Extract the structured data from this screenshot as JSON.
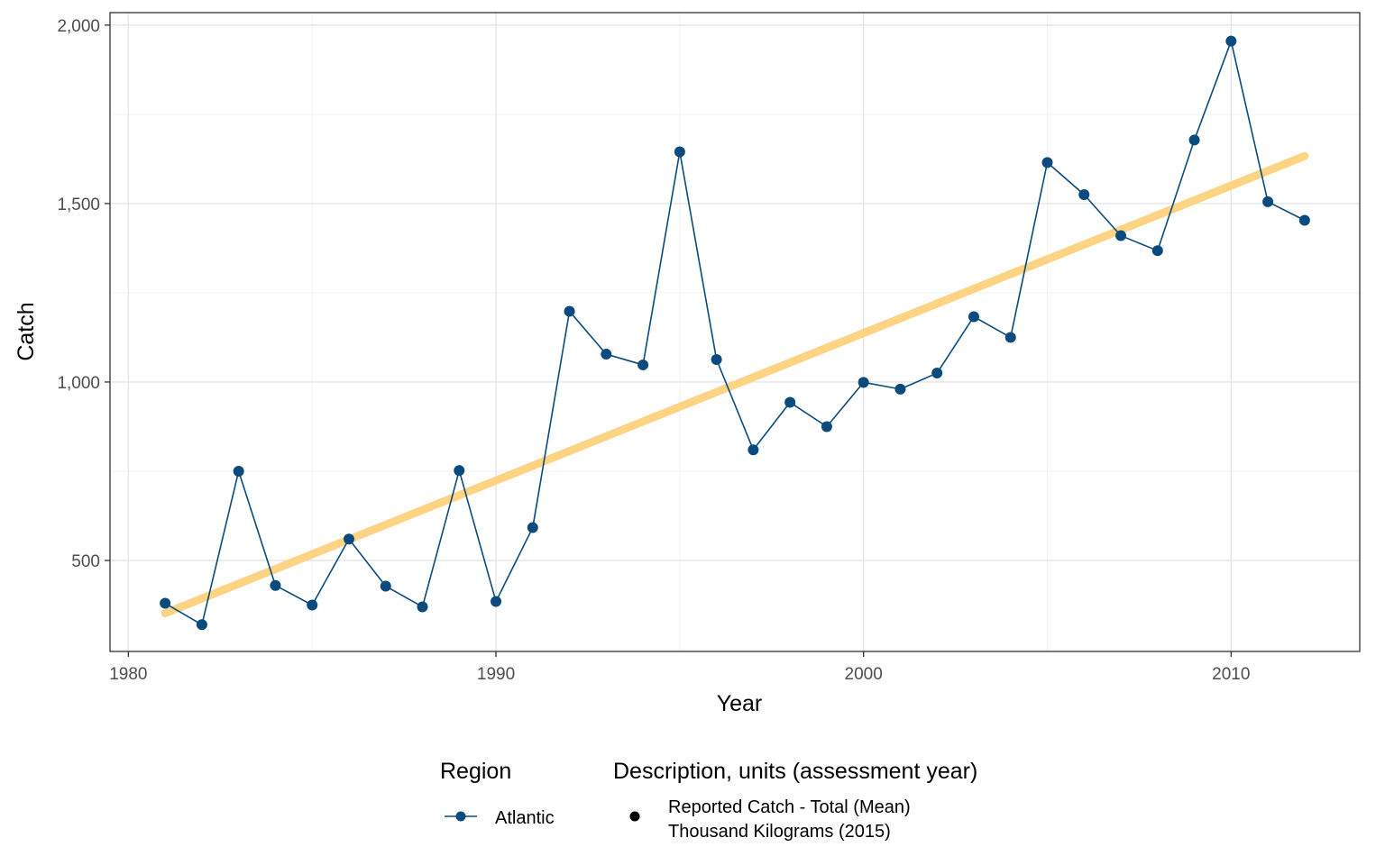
{
  "chart_data": {
    "type": "line",
    "xlabel": "Year",
    "ylabel": "Catch",
    "xlim": [
      1979.5,
      2013.5
    ],
    "ylim": [
      245,
      2035
    ],
    "x_ticks": [
      1980,
      1990,
      2000,
      2010
    ],
    "x_tick_labels": [
      "1980",
      "1990",
      "2000",
      "2010"
    ],
    "y_ticks": [
      500,
      1000,
      1500,
      2000
    ],
    "y_tick_labels": [
      "500",
      "1,000",
      "1,500",
      "2,000"
    ],
    "grid": true,
    "series": [
      {
        "name": "Atlantic",
        "color": "#0b4a7d",
        "x": [
          1981,
          1982,
          1983,
          1984,
          1985,
          1986,
          1987,
          1988,
          1989,
          1990,
          1991,
          1992,
          1993,
          1994,
          1995,
          1996,
          1997,
          1998,
          1999,
          2000,
          2001,
          2002,
          2003,
          2004,
          2005,
          2006,
          2007,
          2008,
          2009,
          2010,
          2011,
          2012
        ],
        "y": [
          380,
          320,
          750,
          430,
          375,
          560,
          428,
          370,
          752,
          385,
          592,
          1198,
          1078,
          1048,
          1645,
          1063,
          810,
          943,
          875,
          999,
          980,
          1025,
          1183,
          1125,
          1615,
          1525,
          1410,
          1368,
          1678,
          1955,
          1505,
          1453
        ]
      }
    ],
    "trend": {
      "color": "#fdd27c",
      "x": [
        1981,
        2012
      ],
      "y": [
        352,
        1633
      ]
    },
    "legend": {
      "placement": "bottom",
      "region_title": "Region",
      "region_label": "Atlantic",
      "description_title": "Description, units (assessment year)",
      "description_line1": "Reported Catch - Total (Mean)",
      "description_line2": "Thousand Kilograms (2015)"
    }
  }
}
